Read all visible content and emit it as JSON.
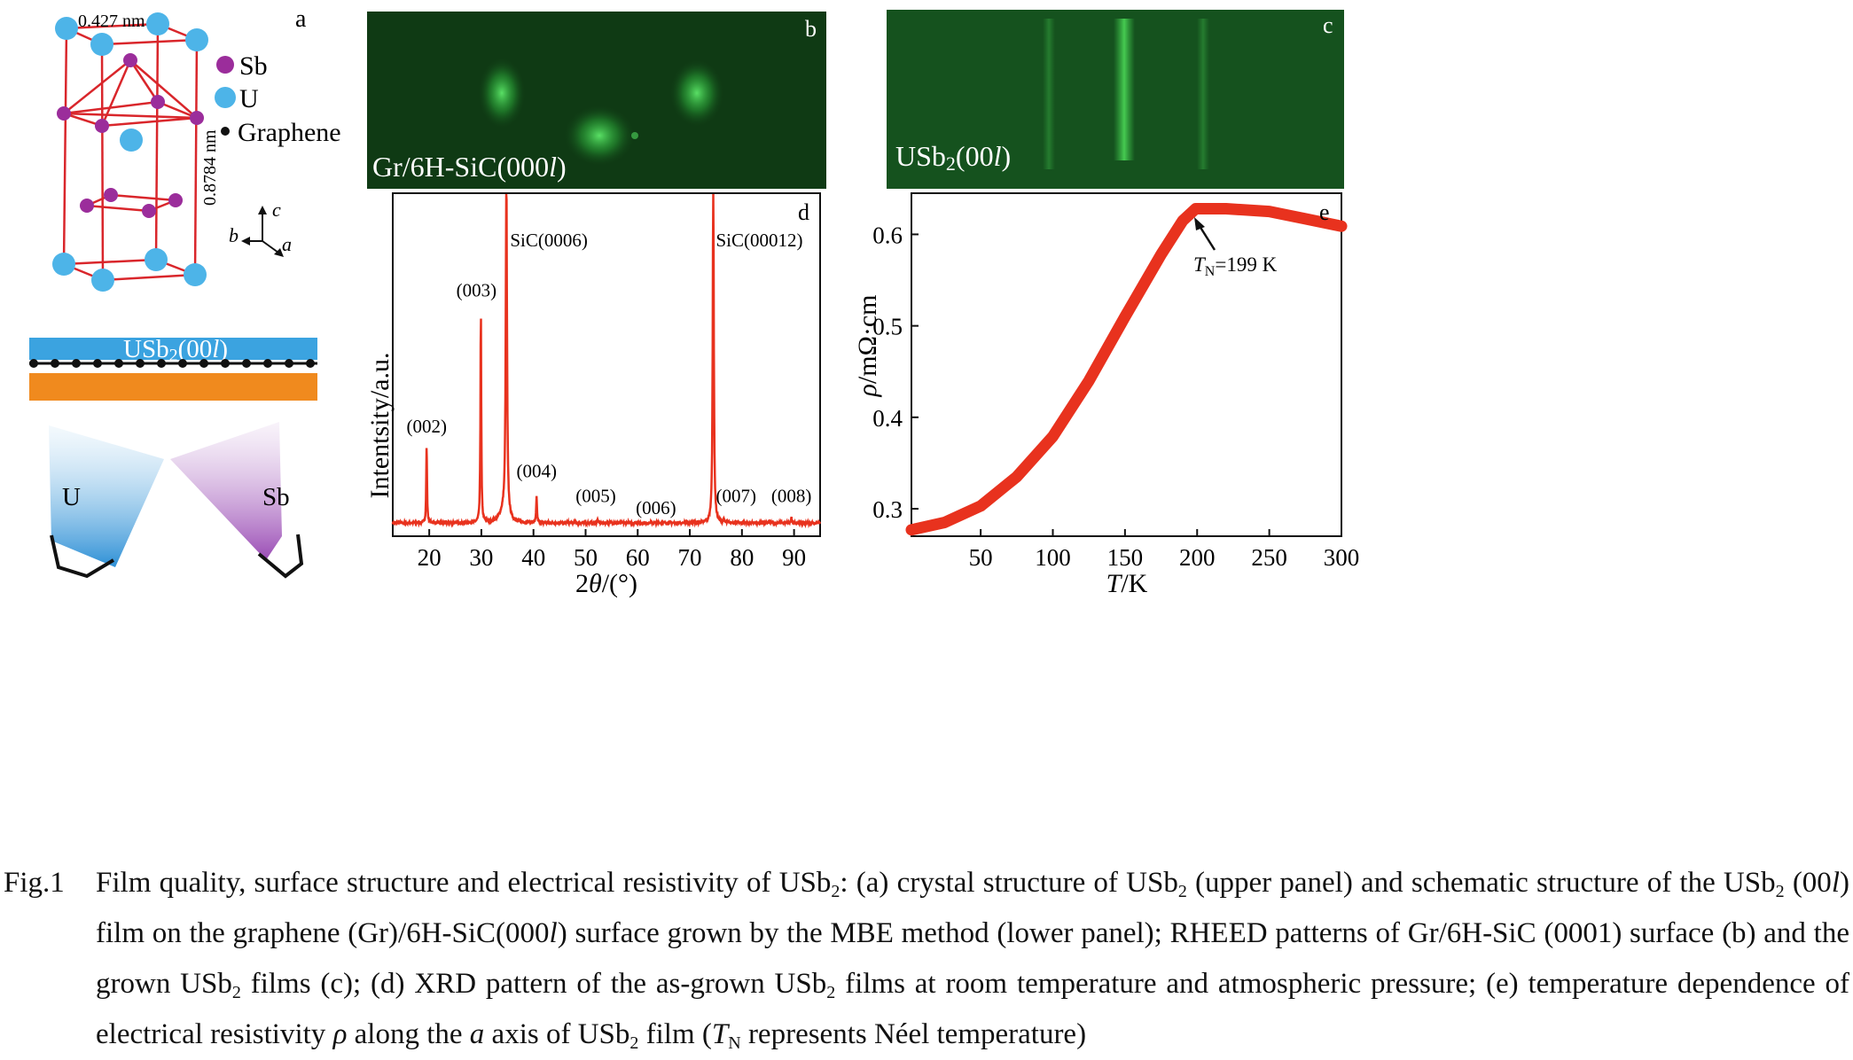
{
  "panel_a": {
    "letter": "a",
    "dim_a": "0.427 nm",
    "dim_c": "0.8784 nm",
    "legend": [
      {
        "label": "Sb",
        "color": "#9b2d9b"
      },
      {
        "label": "U",
        "color": "#4db4e8"
      },
      {
        "label": "Graphene",
        "color": "#111111"
      }
    ],
    "axes": {
      "c": "c",
      "b": "b",
      "a": "a"
    },
    "film_label_pre": "USb",
    "film_label_sub": "2",
    "film_label_post": "(00",
    "film_label_l": "l",
    "film_label_end": ")",
    "source_u": "U",
    "source_sb": "Sb",
    "colors": {
      "bond": "#d9262b",
      "film": "#3ba3e0",
      "substrate": "#f08a1e"
    }
  },
  "panel_b": {
    "letter": "b",
    "label_pre": "Gr/6H-SiC(000",
    "label_l": "l",
    "label_post": ")"
  },
  "panel_c": {
    "letter": "c",
    "label_pre": "USb",
    "label_sub": "2",
    "label_post": "(00",
    "label_l": "l",
    "label_end": ")"
  },
  "panel_d": {
    "letter": "d",
    "ylabel": "Intentsity/a.u.",
    "xlabel_pre": "2",
    "xlabel_theta": "θ",
    "xlabel_post": "/(°)",
    "xticks": [
      20,
      30,
      40,
      50,
      60,
      70,
      80,
      90
    ],
    "peak_labels": [
      "(002)",
      "(003)",
      "SiC(0006)",
      "(004)",
      "(005)",
      "(006)",
      "SiC(00012)",
      "(007)",
      "(008)"
    ]
  },
  "panel_e": {
    "letter": "e",
    "ylabel_rho": "ρ",
    "ylabel_unit": "/mΩ·cm",
    "xlabel_T": "T",
    "xlabel_unit": "/K",
    "yticks": [
      "0.3",
      "0.4",
      "0.5",
      "0.6"
    ],
    "xticks": [
      "50",
      "100",
      "150",
      "200",
      "250",
      "300"
    ],
    "annotation_T": "T",
    "annotation_sub": "N",
    "annotation_value": "=199 K"
  },
  "chart_data": [
    {
      "type": "line",
      "panel": "d",
      "xlabel": "2θ/(°)",
      "ylabel": "Intentsity/a.u.",
      "xlim": [
        13,
        95
      ],
      "ylim": [
        0,
        1
      ],
      "color": "#e8321e",
      "peaks": [
        {
          "label": "(002)",
          "x": 19.5,
          "height": 0.24
        },
        {
          "label": "(003)",
          "x": 29.9,
          "height": 0.66
        },
        {
          "label": "SiC(0006)",
          "x": 34.8,
          "height": 1.05
        },
        {
          "label": "(004)",
          "x": 40.6,
          "height": 0.08
        },
        {
          "label": "(005)",
          "x": 52.3,
          "height": 0.01
        },
        {
          "label": "(006)",
          "x": 63.5,
          "height": 0.0
        },
        {
          "label": "SiC(00012)",
          "x": 74.5,
          "height": 1.05
        },
        {
          "label": "(007)",
          "x": 76.5,
          "height": 0.01
        },
        {
          "label": "(008)",
          "x": 89.5,
          "height": 0.015
        }
      ]
    },
    {
      "type": "line",
      "panel": "e",
      "xlabel": "T/K",
      "ylabel": "ρ/mΩ·cm",
      "xlim": [
        2,
        300
      ],
      "ylim": [
        0.27,
        0.645
      ],
      "color": "#e8321e",
      "x": [
        2,
        25,
        50,
        75,
        100,
        125,
        150,
        175,
        190,
        199,
        220,
        250,
        275,
        300
      ],
      "y": [
        0.277,
        0.285,
        0.303,
        0.335,
        0.379,
        0.44,
        0.51,
        0.578,
        0.615,
        0.628,
        0.628,
        0.625,
        0.617,
        0.609
      ],
      "annotation": {
        "text": "TN=199 K",
        "x": 199,
        "y": 0.628
      }
    }
  ],
  "caption": {
    "label": "Fig.1",
    "s1": "Film quality, surface structure and electrical resistivity of USb",
    "s1_sub": "2",
    "s2": ": (a) crystal structure of USb",
    "s2_sub": "2",
    "s3": " (upper panel) and schematic structure of the USb",
    "s3_sub": "2",
    "s4": " (00",
    "s4_l": "l",
    "s5": ") film on the graphene (Gr)/6H-SiC(000",
    "s5_l": "l",
    "s6": ") surface grown by the MBE method (lower panel); RHEED patterns of Gr/6H-SiC (0001) surface (b) and the grown USb",
    "s6_sub": "2",
    "s7": " films (c); (d) XRD pattern of the as-grown USb",
    "s7_sub": "2",
    "s8": " films at room temperature and atmospheric pressure; (e) temperature dependence of electrical resistivity ",
    "s8_rho": "ρ",
    "s9": " along the ",
    "s9_a": "a",
    "s10": " axis of USb",
    "s10_sub": "2",
    "s11": " film (",
    "s11_T": "T",
    "s11_sub": "N",
    "s12": " represents Néel temperature)"
  }
}
